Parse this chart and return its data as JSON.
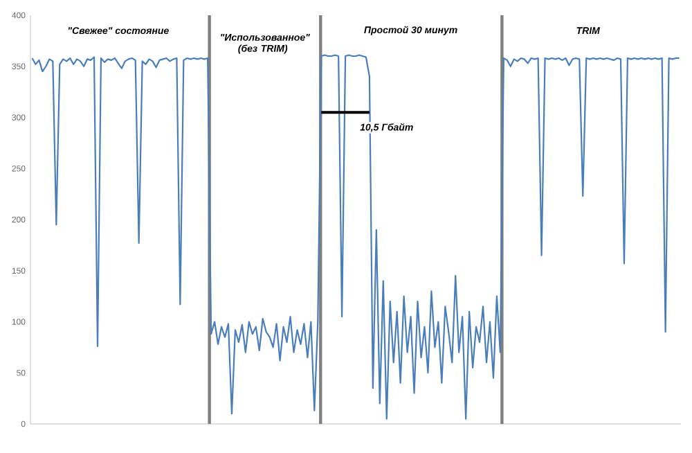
{
  "chart_data": {
    "type": "line",
    "marker": "none",
    "tick_labels": "y",
    "categories": [
      null,
      null,
      null,
      null,
      null,
      null,
      null,
      null,
      null,
      null,
      null,
      null,
      null,
      null,
      null,
      null,
      null,
      null,
      null,
      null,
      null,
      null,
      null,
      null,
      null,
      null,
      null,
      null,
      null,
      null,
      null,
      null,
      null,
      null,
      null,
      null,
      null,
      null,
      null,
      null,
      null,
      null,
      null,
      null,
      null,
      null,
      null,
      null,
      null,
      null,
      null,
      null,
      null,
      null,
      null,
      null,
      null,
      null,
      null,
      null,
      null,
      null,
      null,
      null,
      null,
      null,
      null,
      null,
      null,
      null,
      null,
      null,
      null,
      null,
      null,
      null,
      null,
      null,
      null,
      null,
      null,
      null,
      null,
      null,
      null,
      null,
      null,
      null,
      null,
      null,
      null,
      null,
      null,
      null,
      null,
      null,
      null,
      null,
      null,
      null,
      null,
      null,
      null,
      null,
      null,
      null,
      null,
      null,
      null,
      null,
      null,
      null,
      null,
      null,
      null,
      null,
      null,
      null,
      null,
      null,
      null,
      null,
      null,
      null,
      null,
      null,
      null,
      null,
      null,
      null,
      null,
      null,
      null,
      null,
      null,
      null,
      null,
      null,
      null,
      null,
      null,
      null,
      null,
      null,
      null,
      null,
      null,
      null,
      null,
      null,
      null,
      null,
      null,
      null,
      null,
      null,
      null,
      null,
      null,
      null,
      null,
      null,
      null,
      null,
      null,
      null,
      null,
      null,
      null,
      null,
      null,
      null,
      null,
      null,
      null,
      null,
      null,
      null,
      null,
      null,
      null,
      null,
      null,
      null,
      null,
      null,
      null,
      null,
      null
    ],
    "series": [
      {
        "color": "#4a7ebb",
        "values": [
          358,
          352,
          356,
          345,
          350,
          357,
          355,
          195,
          352,
          357,
          355,
          358,
          352,
          357,
          355,
          350,
          357,
          356,
          359,
          76,
          358,
          354,
          357,
          356,
          358,
          353,
          348,
          355,
          357,
          358,
          356,
          177,
          355,
          352,
          357,
          355,
          349,
          356,
          357,
          358,
          355,
          357,
          358,
          117,
          356,
          358,
          357,
          358,
          357,
          358,
          357,
          358,
          88,
          100,
          78,
          95,
          85,
          98,
          10,
          92,
          80,
          97,
          70,
          100,
          88,
          95,
          72,
          103,
          90,
          85,
          75,
          98,
          62,
          95,
          80,
          105,
          70,
          92,
          78,
          98,
          65,
          100,
          13,
          100,
          360,
          361,
          360,
          360,
          361,
          360,
          105,
          360,
          361,
          360,
          360,
          361,
          360,
          359,
          340,
          35,
          190,
          20,
          140,
          5,
          120,
          60,
          110,
          40,
          125,
          70,
          105,
          30,
          120,
          65,
          95,
          50,
          130,
          75,
          100,
          40,
          115,
          90,
          60,
          145,
          70,
          105,
          5,
          110,
          55,
          95,
          80,
          115,
          60,
          100,
          45,
          125,
          70,
          358,
          356,
          350,
          357,
          355,
          358,
          357,
          353,
          358,
          357,
          358,
          165,
          358,
          357,
          358,
          357,
          358,
          356,
          358,
          351,
          357,
          358,
          357,
          223,
          358,
          357,
          358,
          357,
          358,
          357,
          358,
          357,
          356,
          358,
          357,
          157,
          358,
          357,
          358,
          357,
          358,
          357,
          358,
          357,
          358,
          357,
          358,
          90,
          358,
          357,
          358,
          358
        ]
      },
      {
        "type": "line",
        "color": "#000000",
        "values": [
          null,
          null,
          null,
          null,
          null,
          null,
          null,
          null,
          null,
          null,
          null,
          null,
          null,
          null,
          null,
          null,
          null,
          null,
          null,
          null,
          null,
          null,
          null,
          null,
          null,
          null,
          null,
          null,
          null,
          null,
          null,
          null,
          null,
          null,
          null,
          null,
          null,
          null,
          null,
          null,
          null,
          null,
          null,
          null,
          null,
          null,
          null,
          null,
          null,
          null,
          null,
          null,
          null,
          null,
          null,
          null,
          null,
          null,
          null,
          null,
          null,
          null,
          null,
          null,
          null,
          null,
          null,
          null,
          null,
          null,
          null,
          null,
          null,
          null,
          null,
          null,
          null,
          null,
          null,
          null,
          null,
          null,
          null,
          null,
          305,
          305,
          305,
          305,
          305,
          305,
          305,
          305,
          305,
          305,
          305,
          305,
          305,
          305,
          305,
          null,
          null,
          null,
          null,
          null,
          null,
          null,
          null,
          null,
          null,
          null,
          null,
          null,
          null,
          null,
          null,
          null,
          null,
          null,
          null,
          null,
          null,
          null,
          null,
          null,
          null,
          null,
          null,
          null,
          null,
          null,
          null,
          null,
          null,
          null,
          null,
          null,
          null,
          null,
          null,
          null,
          null,
          null,
          null,
          null,
          null,
          null,
          null,
          null,
          null,
          null,
          null,
          null,
          null,
          null,
          null,
          null,
          null,
          null,
          null,
          null,
          null,
          null,
          null,
          null,
          null,
          null,
          null,
          null,
          null,
          null,
          null,
          null,
          null,
          null,
          null,
          null,
          null,
          null,
          null,
          null,
          null,
          null,
          null,
          null,
          null,
          null,
          null,
          null,
          null
        ]
      }
    ],
    "ylim": [
      0,
      400
    ],
    "yticks": [
      0,
      50,
      100,
      150,
      200,
      250,
      300,
      350,
      400
    ],
    "annotations": [
      "\"Свежее\" состояние",
      "\"Использованное\" (без TRIM)",
      "Простой 30 минут",
      "TRIM",
      "10,5 Гбайт"
    ]
  }
}
